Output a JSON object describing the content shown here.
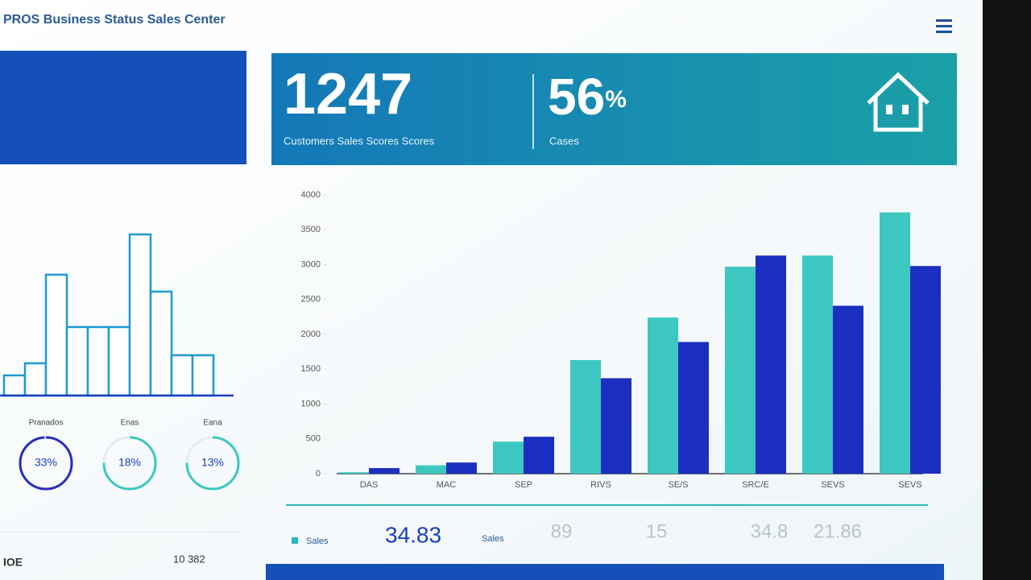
{
  "header": {
    "title": "PROS Business Status Sales Center"
  },
  "kpis": [
    {
      "value": "1247",
      "label": "Customers Sales Scores Scores"
    },
    {
      "value": "56",
      "unit": "%",
      "label": "Cases"
    }
  ],
  "chart_data": [
    {
      "type": "bar",
      "categories": [
        "DAS",
        "MAC",
        "SEP",
        "RIVS",
        "SE/S",
        "SRC/E",
        "SEVS",
        "SEVS"
      ],
      "series": [
        {
          "color": "#3cc8c0",
          "values": [
            20,
            120,
            460,
            1630,
            2240,
            2970,
            3130,
            3750
          ]
        },
        {
          "color": "#1a2fc0",
          "values": [
            80,
            160,
            530,
            1370,
            1890,
            3130,
            2410,
            2980
          ]
        }
      ],
      "ylim": [
        0,
        4000
      ],
      "yticks": [
        0,
        500,
        1000,
        1500,
        2000,
        2500,
        3000,
        3500,
        4000
      ]
    },
    {
      "type": "outline-bar",
      "categories": [
        null,
        null,
        null,
        null,
        null,
        null,
        null,
        null,
        null,
        null
      ],
      "values": [
        25,
        40,
        150,
        85,
        85,
        85,
        200,
        129,
        50,
        50
      ],
      "color": "#1f9ad0",
      "ylim": [
        0,
        200
      ]
    }
  ],
  "donuts": [
    {
      "label": "Pranados",
      "value": 33,
      "value_label": "33%",
      "color": "#2a2fb8"
    },
    {
      "label": "Enas",
      "value": 18,
      "value_label": "18%",
      "color": "#3cc8c0"
    },
    {
      "label": "Eana",
      "value": 13,
      "value_label": "13%",
      "color": "#3cc8c0"
    }
  ],
  "footer": {
    "legend": "Sales",
    "main": "34.83",
    "sub": "Sales",
    "items": [
      "89",
      "15",
      "34.8",
      "21.86"
    ],
    "left": "IOE",
    "left_value": "10 382"
  }
}
